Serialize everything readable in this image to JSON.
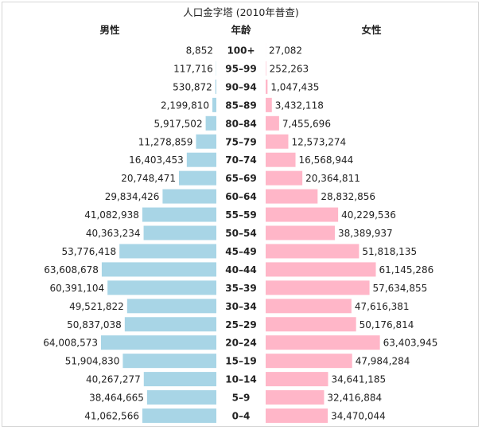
{
  "chart_data": {
    "type": "bar",
    "title": "人口金字塔 (2010年普查)",
    "left_header": "男性",
    "center_header": "年龄",
    "right_header": "女性",
    "categories": [
      "100+",
      "95–99",
      "90–94",
      "85–89",
      "80–84",
      "75–79",
      "70–74",
      "65–69",
      "60–64",
      "55–59",
      "50–54",
      "45–49",
      "40–44",
      "35–39",
      "30–34",
      "25–29",
      "20–24",
      "15–19",
      "10–14",
      "5–9",
      "0–4"
    ],
    "series": [
      {
        "name": "男性",
        "values": [
          8852,
          117716,
          530872,
          2199810,
          5917502,
          11278859,
          16403453,
          20748471,
          29834426,
          41082938,
          40363234,
          53776418,
          63608678,
          60391104,
          49521822,
          50837038,
          64008573,
          51904830,
          40267277,
          38464665,
          41062566
        ],
        "labels": [
          "8,852",
          "117,716",
          "530,872",
          "2,199,810",
          "5,917,502",
          "11,278,859",
          "16,403,453",
          "20,748,471",
          "29,834,426",
          "41,082,938",
          "40,363,234",
          "53,776,418",
          "63,608,678",
          "60,391,104",
          "49,521,822",
          "50,837,038",
          "64,008,573",
          "51,904,830",
          "40,267,277",
          "38,464,665",
          "41,062,566"
        ],
        "color": "#a8d5e6"
      },
      {
        "name": "女性",
        "values": [
          27082,
          252263,
          1047435,
          3432118,
          7455696,
          12573274,
          16568944,
          20364811,
          28832856,
          40229536,
          38389937,
          51818135,
          61145286,
          57634855,
          47616381,
          50176814,
          63403945,
          47984284,
          34641185,
          32416884,
          34470044
        ],
        "labels": [
          "27,082",
          "252,263",
          "1,047,435",
          "3,432,118",
          "7,455,696",
          "12,573,274",
          "16,568,944",
          "20,364,811",
          "28,832,856",
          "40,229,536",
          "38,389,937",
          "51,818,135",
          "61,145,286",
          "57,634,855",
          "47,616,381",
          "50,176,814",
          "63,403,945",
          "47,984,284",
          "34,641,185",
          "32,416,884",
          "34,470,044"
        ],
        "color": "#ffb6c8"
      }
    ],
    "grid": false,
    "legend": "none"
  }
}
